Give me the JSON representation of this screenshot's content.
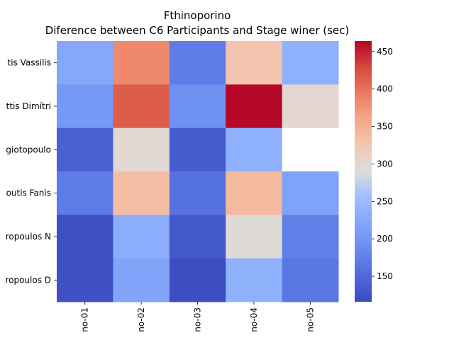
{
  "chart_data": {
    "type": "heatmap",
    "title": "Fthinoporino",
    "subtitle": "Diference between C6 Participants and Stage winer (sec)",
    "xlabel": "",
    "ylabel": "",
    "x_categories": [
      "no-01",
      "no-02",
      "no-03",
      "no-04",
      "no-05"
    ],
    "y_categories": [
      "tis Vassilis",
      "ttis Dimítri",
      "giotopoulo",
      "outis Fanis",
      "ropoulos N",
      "ropoulos D"
    ],
    "values": [
      [
        225,
        383,
        172,
        327,
        237
      ],
      [
        205,
        415,
        193,
        462,
        300
      ],
      [
        140,
        298,
        135,
        236,
        null
      ],
      [
        170,
        335,
        160,
        340,
        218
      ],
      [
        120,
        232,
        130,
        295,
        175
      ],
      [
        122,
        220,
        118,
        238,
        165
      ]
    ],
    "colormap": "coolwarm",
    "vmin": 116,
    "vmax": 464,
    "colorbar_ticks": [
      150,
      200,
      250,
      300,
      350,
      400,
      450
    ],
    "missing_cell_color": "#ffffff"
  }
}
